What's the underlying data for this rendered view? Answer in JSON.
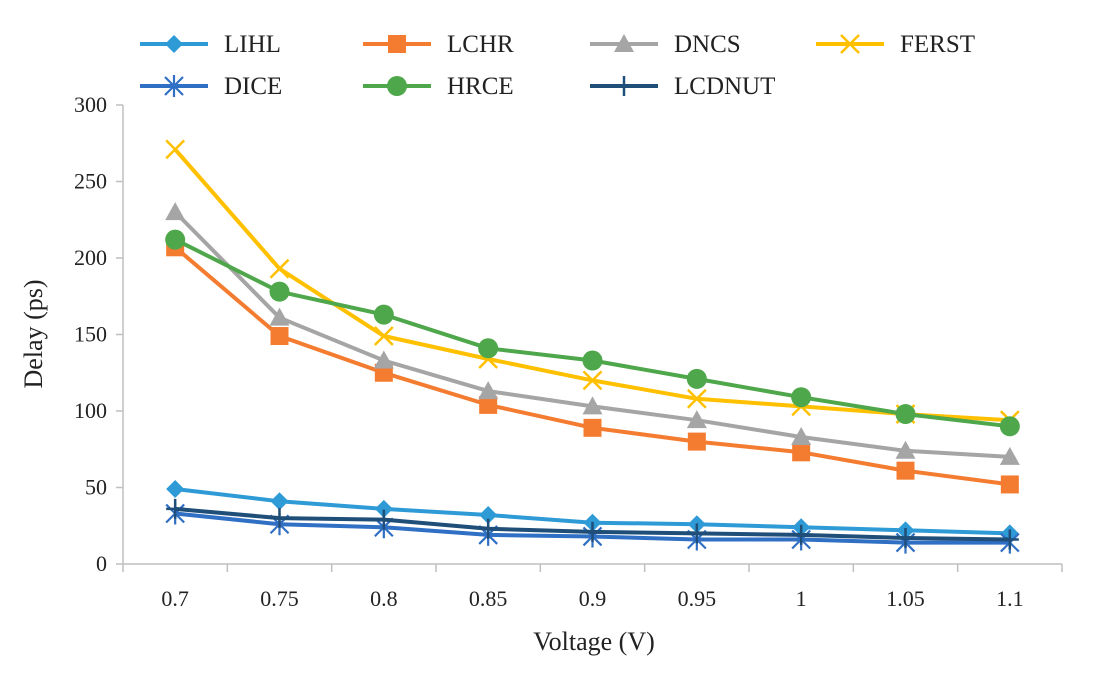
{
  "chart_data": {
    "type": "line",
    "xlabel": "Voltage (V)",
    "ylabel": "Delay (ps)",
    "ylim": [
      0,
      300
    ],
    "yticks": [
      "0",
      "50",
      "100",
      "150",
      "200",
      "250",
      "300"
    ],
    "categories": [
      "0.7",
      "0.75",
      "0.8",
      "0.85",
      "0.9",
      "0.95",
      "1",
      "1.05",
      "1.1"
    ],
    "grid": false,
    "legend_position": "top",
    "series": [
      {
        "name": "LIHL",
        "color": "#2e9ad6",
        "marker": "diamond",
        "values": [
          49,
          41,
          36,
          32,
          27,
          26,
          24,
          22,
          20
        ]
      },
      {
        "name": "LCHR",
        "color": "#f47c30",
        "marker": "square",
        "values": [
          207,
          149,
          125,
          104,
          89,
          80,
          73,
          61,
          52
        ]
      },
      {
        "name": "DNCS",
        "color": "#a5a5a5",
        "marker": "triangle",
        "values": [
          230,
          161,
          133,
          113,
          103,
          94,
          83,
          74,
          70
        ]
      },
      {
        "name": "FERST",
        "color": "#ffc000",
        "marker": "x",
        "values": [
          271,
          193,
          149,
          134,
          120,
          108,
          103,
          98,
          94
        ]
      },
      {
        "name": "DICE",
        "color": "#2f6fc4",
        "marker": "star",
        "values": [
          33,
          26,
          24,
          19,
          18,
          16,
          16,
          14,
          14
        ]
      },
      {
        "name": "HRCE",
        "color": "#4ea74a",
        "marker": "circle",
        "values": [
          212,
          178,
          163,
          141,
          133,
          121,
          109,
          98,
          90
        ]
      },
      {
        "name": "LCDNUT",
        "color": "#1f4e79",
        "marker": "plus",
        "values": [
          36,
          30,
          29,
          23,
          21,
          20,
          19,
          17,
          16
        ]
      }
    ]
  }
}
